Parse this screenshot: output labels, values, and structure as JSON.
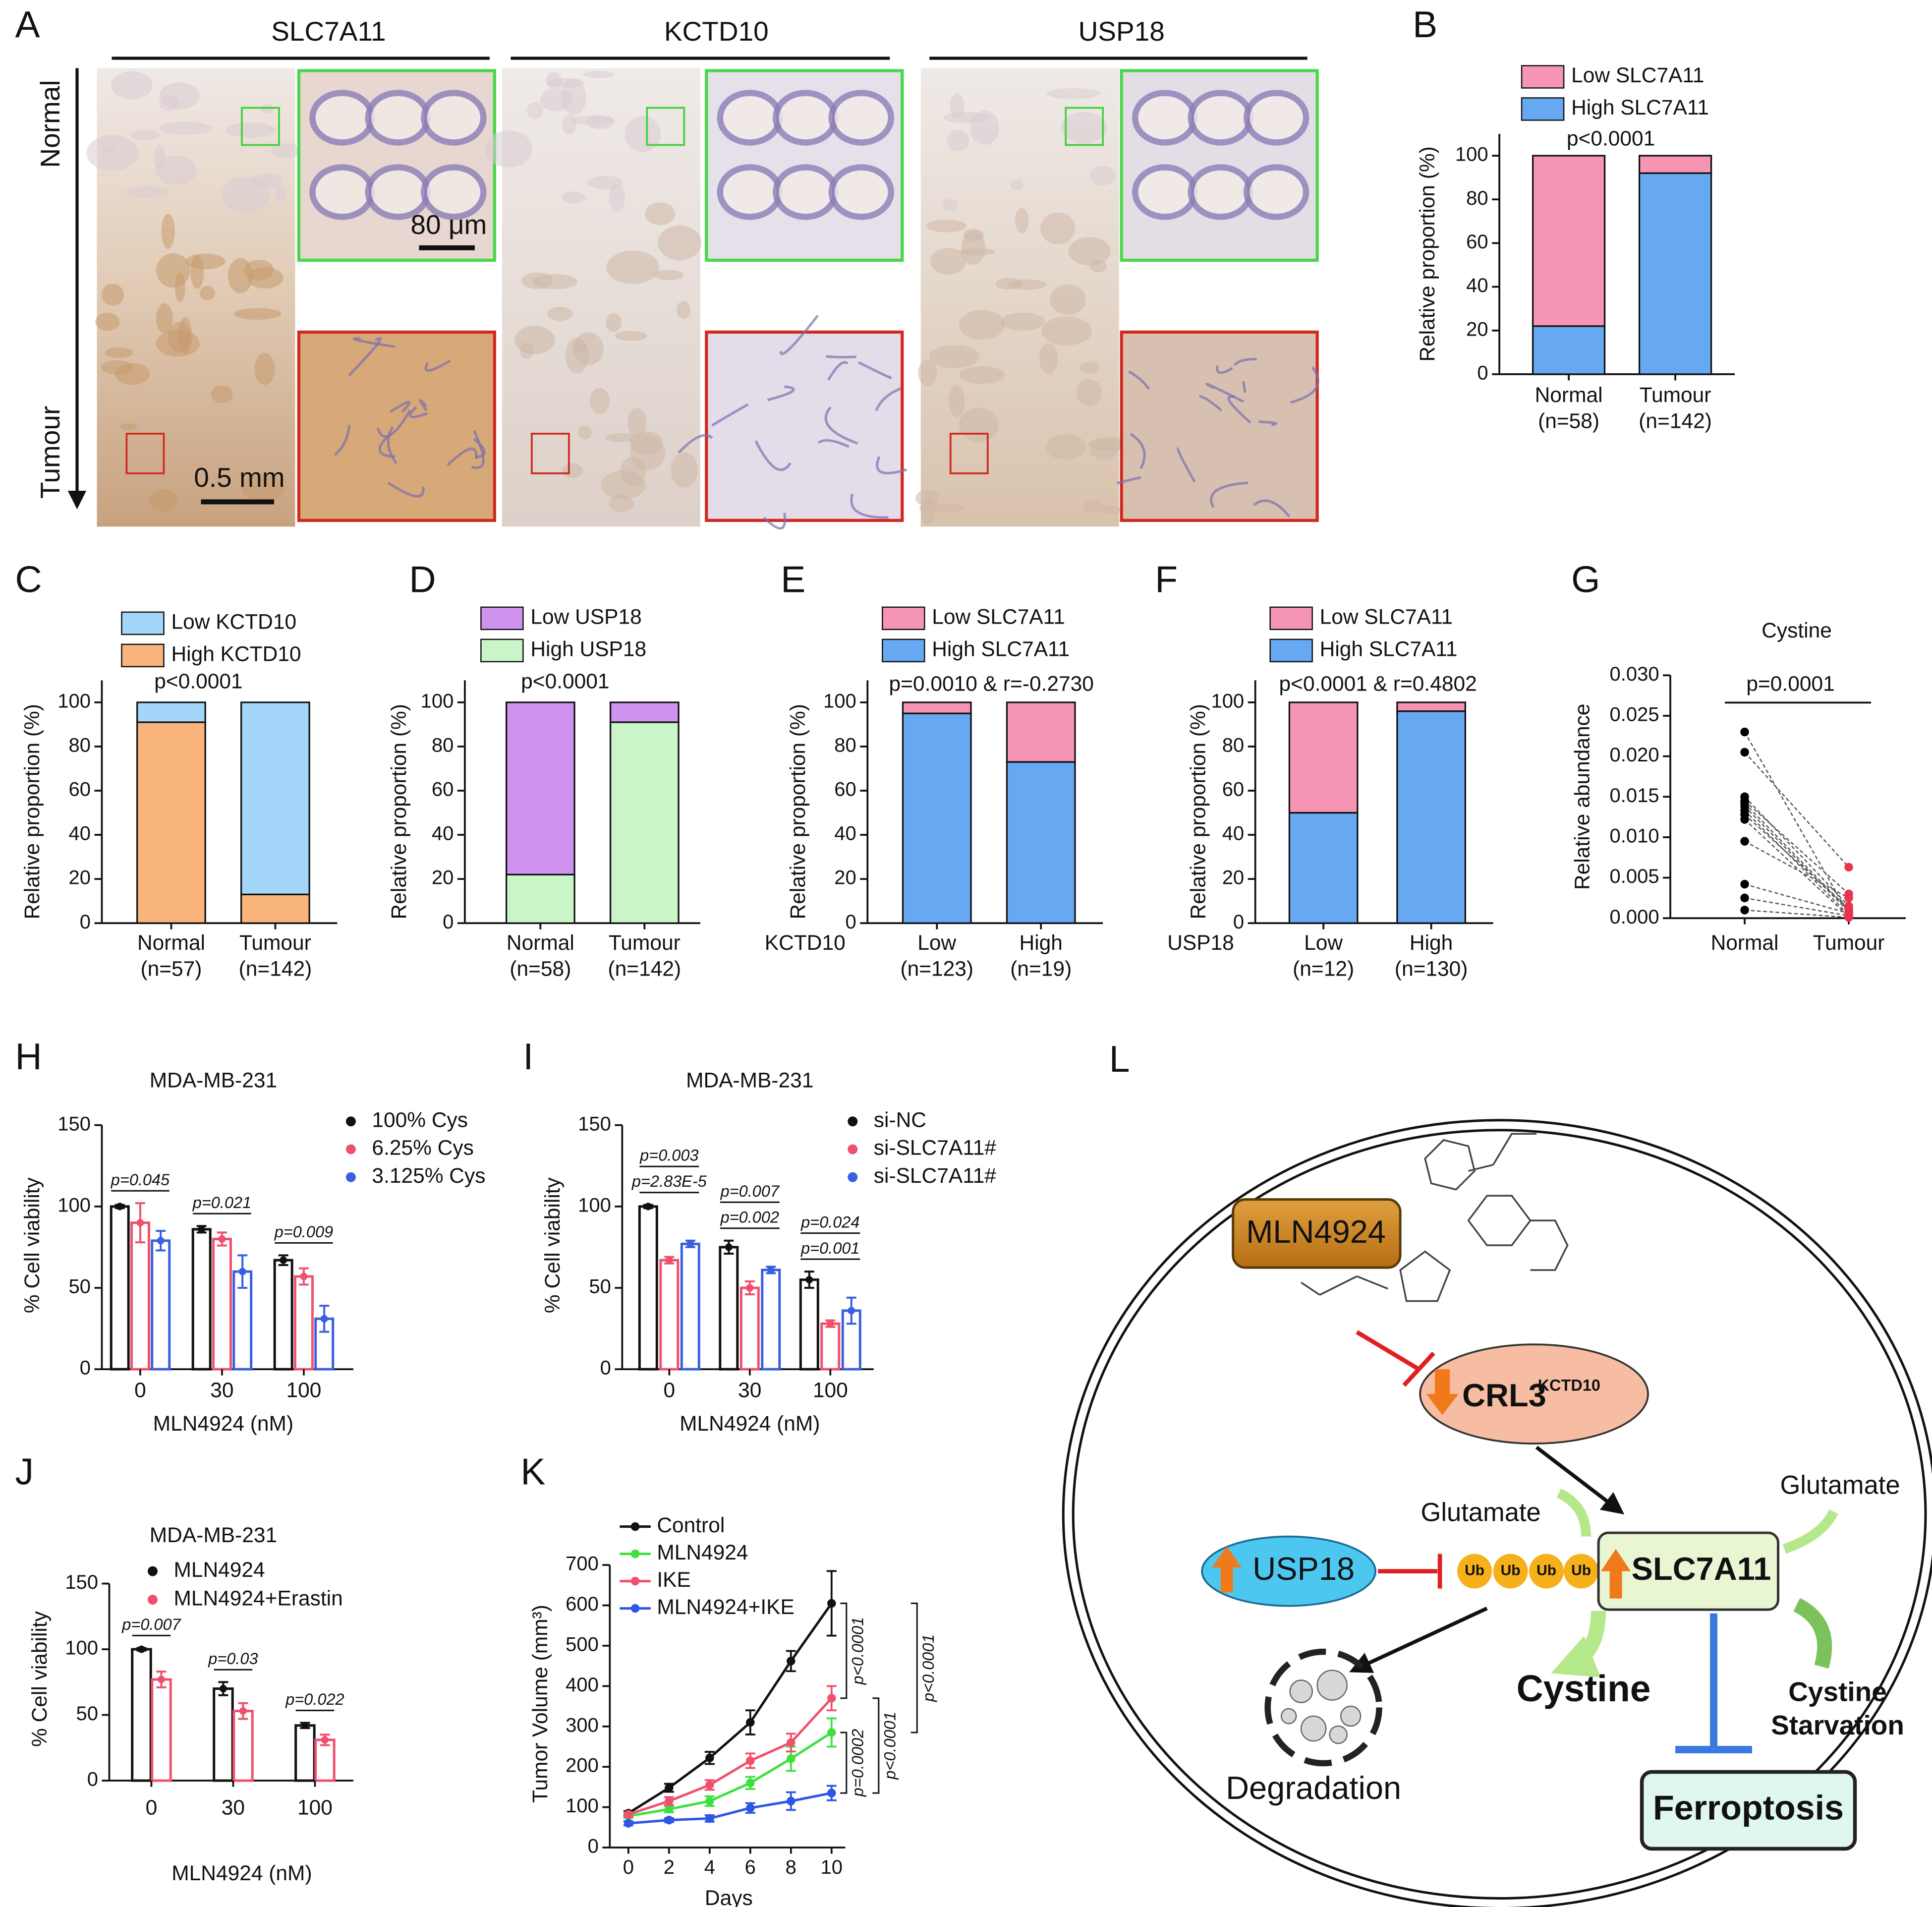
{
  "panel_a": {
    "label": "A",
    "columns": [
      "SLC7A11",
      "KCTD10",
      "USP18"
    ],
    "axis_top": "Normal",
    "axis_bottom": "Tumour",
    "scale_small": "80 μm",
    "scale_large": "0.5 mm"
  },
  "chart_data": [
    {
      "type": "stacked_bar",
      "label": "B",
      "categories": [
        "Normal",
        "Tumour"
      ],
      "sublabels": [
        "(n=58)",
        "(n=142)"
      ],
      "ylabel": "Relative proportion (%)",
      "annotation": "p<0.0001",
      "ylim": [
        0,
        110
      ],
      "yticks": [
        0,
        20,
        40,
        60,
        80,
        100
      ],
      "series": [
        {
          "name": "High SLC7A11",
          "color": "#66a9f2",
          "values": [
            22,
            92
          ]
        },
        {
          "name": "Low SLC7A11",
          "color": "#f595b3",
          "values": [
            78,
            8
          ]
        }
      ]
    },
    {
      "type": "stacked_bar",
      "label": "C",
      "categories": [
        "Normal",
        "Tumour"
      ],
      "sublabels": [
        "(n=57)",
        "(n=142)"
      ],
      "ylabel": "Relative proportion (%)",
      "annotation": "p<0.0001",
      "ylim": [
        0,
        110
      ],
      "yticks": [
        0,
        20,
        40,
        60,
        80,
        100
      ],
      "series": [
        {
          "name": "High KCTD10",
          "color": "#f9b47c",
          "values": [
            91,
            13
          ]
        },
        {
          "name": "Low KCTD10",
          "color": "#a4d6fa",
          "values": [
            9,
            87
          ]
        }
      ]
    },
    {
      "type": "stacked_bar",
      "label": "D",
      "categories": [
        "Normal",
        "Tumour"
      ],
      "sublabels": [
        "(n=58)",
        "(n=142)"
      ],
      "ylabel": "Relative proportion (%)",
      "annotation": "p<0.0001",
      "ylim": [
        0,
        110
      ],
      "yticks": [
        0,
        20,
        40,
        60,
        80,
        100
      ],
      "series": [
        {
          "name": "High USP18",
          "color": "#c9f5c9",
          "values": [
            22,
            91
          ]
        },
        {
          "name": "Low USP18",
          "color": "#cf92ee",
          "values": [
            78,
            9
          ]
        }
      ]
    },
    {
      "type": "stacked_bar",
      "label": "E",
      "group_label": "KCTD10",
      "categories": [
        "Low",
        "High"
      ],
      "sublabels": [
        "(n=123)",
        "(n=19)"
      ],
      "ylabel": "Relative proportion (%)",
      "annotation": "p=0.0010 & r=-0.2730",
      "ylim": [
        0,
        110
      ],
      "yticks": [
        0,
        20,
        40,
        60,
        80,
        100
      ],
      "series": [
        {
          "name": "High SLC7A11",
          "color": "#66a9f2",
          "values": [
            95,
            73
          ]
        },
        {
          "name": "Low SLC7A11",
          "color": "#f595b3",
          "values": [
            5,
            27
          ]
        }
      ]
    },
    {
      "type": "stacked_bar",
      "label": "F",
      "group_label": "USP18",
      "categories": [
        "Low",
        "High"
      ],
      "sublabels": [
        "(n=12)",
        "(n=130)"
      ],
      "ylabel": "Relative proportion (%)",
      "annotation": "p<0.0001 & r=0.4802",
      "ylim": [
        0,
        110
      ],
      "yticks": [
        0,
        20,
        40,
        60,
        80,
        100
      ],
      "series": [
        {
          "name": "High SLC7A11",
          "color": "#66a9f2",
          "values": [
            50,
            96
          ]
        },
        {
          "name": "Low SLC7A11",
          "color": "#f595b3",
          "values": [
            50,
            4
          ]
        }
      ]
    },
    {
      "type": "scatter",
      "label": "G",
      "title": "Cystine",
      "ylabel": "Relative abundance",
      "categories": [
        "Normal",
        "Tumour"
      ],
      "annotation": "p=0.0001",
      "ylim": [
        0,
        0.03
      ],
      "yticks": [
        {
          "value": 0,
          "label": "0.000"
        },
        0.005,
        {
          "value": 0.01,
          "label": "0.010"
        },
        0.015,
        {
          "value": 0.02,
          "label": "0.020"
        },
        0.025,
        {
          "value": 0.03,
          "label": "0.030"
        }
      ],
      "series": [
        {
          "color": "#000000",
          "values": [
            0.023,
            0.0205,
            0.015,
            0.0145,
            0.0142,
            0.0138,
            0.0133,
            0.0128,
            0.0122,
            0.0095,
            0.0042,
            0.0025,
            0.001
          ]
        },
        {
          "color": "#e8344e",
          "values": [
            0.0005,
            0.0063,
            0.0015,
            0.003,
            0.001,
            0.0008,
            0.0004,
            0.0012,
            0.0002,
            0.0025,
            0.0006,
            0.0003,
            0.0001
          ]
        }
      ]
    },
    {
      "type": "bar",
      "label": "H",
      "title": "MDA-MB-231",
      "xlabel": "MLN4924 (nM)",
      "ylabel": "% Cell viability",
      "categories": [
        "0",
        "30",
        "100"
      ],
      "ylim": [
        0,
        150
      ],
      "yticks": [
        0,
        50,
        100,
        150
      ],
      "annotations": [
        [
          "p=0.045"
        ],
        [
          "p=0.021"
        ],
        [
          "p=0.009"
        ]
      ],
      "series": [
        {
          "name": "100% Cys",
          "color": "#111111",
          "values": [
            100,
            86,
            67
          ],
          "errors": [
            1,
            2,
            3
          ]
        },
        {
          "name": "6.25% Cys",
          "color": "#f0506e",
          "values": [
            90,
            80,
            57
          ],
          "errors": [
            12,
            4,
            5
          ]
        },
        {
          "name": "3.125% Cys",
          "color": "#3a5fe0",
          "values": [
            79,
            60,
            31
          ],
          "errors": [
            6,
            10,
            8
          ]
        }
      ]
    },
    {
      "type": "bar",
      "label": "I",
      "title": "MDA-MB-231",
      "xlabel": "MLN4924 (nM)",
      "ylabel": "% Cell viability",
      "categories": [
        "0",
        "30",
        "100"
      ],
      "ylim": [
        0,
        150
      ],
      "yticks": [
        0,
        50,
        100,
        150
      ],
      "annotations": [
        [
          "p=0.003",
          "p=2.83E-5"
        ],
        [
          "p=0.007",
          "p=0.002"
        ],
        [
          "p=0.024",
          "p=0.001"
        ]
      ],
      "series": [
        {
          "name": "si-NC",
          "color": "#111111",
          "values": [
            100,
            75,
            55
          ],
          "errors": [
            1,
            4,
            5
          ]
        },
        {
          "name": "si-SLC7A11#",
          "color": "#f0506e",
          "values": [
            67,
            50,
            28
          ],
          "errors": [
            2,
            4,
            2
          ]
        },
        {
          "name": "si-SLC7A11#",
          "color": "#3a5fe0",
          "values": [
            77,
            61,
            36
          ],
          "errors": [
            2,
            2,
            8
          ]
        }
      ]
    },
    {
      "type": "bar",
      "label": "J",
      "title": "MDA-MB-231",
      "xlabel": "MLN4924 (nM)",
      "ylabel": "% Cell viability",
      "categories": [
        "0",
        "30",
        "100"
      ],
      "ylim": [
        0,
        150
      ],
      "yticks": [
        0,
        50,
        100,
        150
      ],
      "annotations": [
        [
          "p=0.007"
        ],
        [
          "p=0.03"
        ],
        [
          "p=0.022"
        ]
      ],
      "series": [
        {
          "name": "MLN4924",
          "color": "#111111",
          "values": [
            100,
            70,
            42
          ],
          "errors": [
            1,
            5,
            2
          ]
        },
        {
          "name": "MLN4924+Erastin",
          "color": "#f0506e",
          "values": [
            77,
            53,
            31
          ],
          "errors": [
            6,
            6,
            4
          ]
        }
      ]
    },
    {
      "type": "line",
      "label": "K",
      "xlabel": "Days",
      "ylabel": "Tumor Volume (mm³)",
      "x": [
        0,
        2,
        4,
        6,
        8,
        10
      ],
      "xlim": [
        0,
        10
      ],
      "xticks": [
        0,
        2,
        4,
        6,
        8,
        10
      ],
      "ylim": [
        0,
        700
      ],
      "yticks": [
        0,
        100,
        200,
        300,
        400,
        500,
        600,
        700
      ],
      "annotations": [
        "p<0.0001",
        "p<0.0001",
        "p=0.0002",
        "p<0.0001"
      ],
      "series": [
        {
          "name": "Control",
          "color": "#111111",
          "values": [
            85,
            148,
            222,
            310,
            462,
            605
          ],
          "errors": [
            5,
            10,
            15,
            30,
            25,
            80
          ]
        },
        {
          "name": "MLN4924",
          "color": "#3ee03e",
          "values": [
            78,
            95,
            115,
            160,
            220,
            285
          ],
          "errors": [
            5,
            8,
            12,
            15,
            30,
            35
          ]
        },
        {
          "name": "IKE",
          "color": "#f0506e",
          "values": [
            82,
            115,
            155,
            215,
            260,
            370
          ],
          "errors": [
            5,
            10,
            12,
            18,
            22,
            30
          ]
        },
        {
          "name": "MLN4924+IKE",
          "color": "#2d55e6",
          "values": [
            60,
            68,
            72,
            98,
            115,
            135
          ],
          "errors": [
            5,
            5,
            8,
            12,
            22,
            18
          ]
        }
      ]
    }
  ],
  "diagram": {
    "label": "L",
    "drug": "MLN4924",
    "crl3": "CRL3",
    "crl3_sup": "KCTD10",
    "usp18": "USP18",
    "ub": [
      "Ub",
      "Ub",
      "Ub",
      "Ub"
    ],
    "glutamate_left": "Glutamate",
    "glutamate_right": "Glutamate",
    "transporter": "SLC7A11",
    "cystine": "Cystine",
    "starvation": [
      "Cystine",
      "Starvation"
    ],
    "ferroptosis": "Ferroptosis",
    "degradation": "Degradation"
  }
}
